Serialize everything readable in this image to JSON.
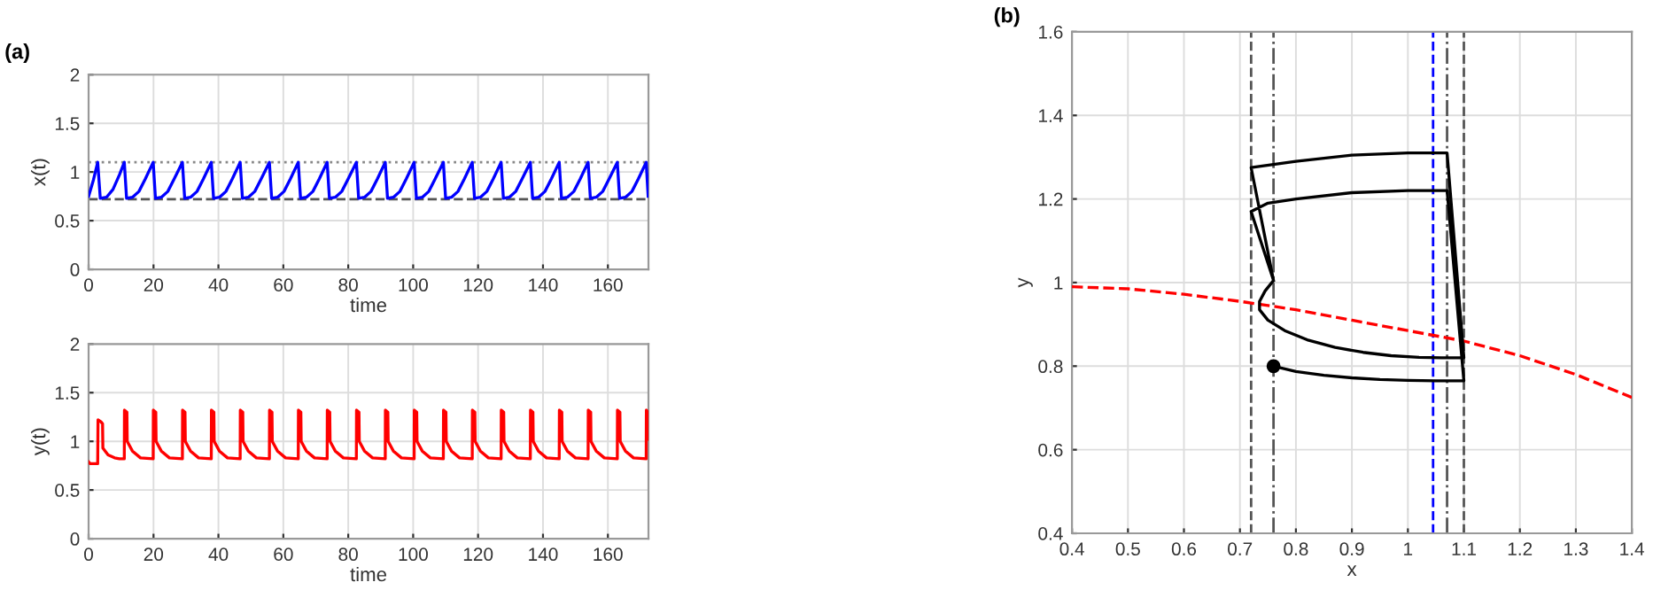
{
  "chart_data": [
    {
      "type": "line",
      "title": "(a)",
      "xlabel": "time",
      "ylabel": "x(t)",
      "xlim": [
        0,
        172.5
      ],
      "ylim": [
        0,
        2
      ],
      "xticks": [
        0,
        20,
        40,
        60,
        80,
        100,
        120,
        140,
        160
      ],
      "yticks": [
        0,
        0.5,
        1,
        1.5,
        2
      ],
      "grid": true,
      "ref_lines": [
        {
          "axis": "y",
          "value": 0.72,
          "color": "#555555",
          "line_style": "dashed"
        },
        {
          "axis": "y",
          "value": 1.1,
          "color": "#888888",
          "line_style": "dotted"
        }
      ],
      "series": [
        {
          "color": "#0000ff",
          "x": [
            0,
            1.5,
            2.8,
            3.6,
            5.5,
            7.5,
            9.5,
            11.0,
            11.7,
            13.5,
            15.5,
            17.5,
            19.9,
            20.6,
            22.4,
            24.4,
            26.4,
            28.9,
            29.6,
            31.4,
            33.4,
            35.4,
            37.8,
            38.5,
            40.3,
            42.3,
            44.3,
            46.7,
            47.4,
            49.2,
            51.2,
            53.2,
            55.7,
            56.4,
            58.2,
            60.2,
            62.2,
            64.6,
            65.3,
            67.1,
            69.1,
            71.1,
            73.5,
            74.2,
            76.0,
            78.0,
            80.0,
            82.5,
            83.2,
            85.0,
            87.0,
            89.0,
            91.4,
            92.1,
            93.9,
            95.9,
            97.9,
            100.3,
            101.0,
            102.8,
            104.8,
            106.8,
            109.3,
            110.0,
            111.8,
            113.8,
            115.8,
            118.2,
            118.9,
            120.7,
            122.7,
            124.7,
            127.1,
            127.8,
            129.6,
            131.6,
            133.6,
            136.1,
            136.8,
            138.6,
            140.6,
            142.6,
            145.0,
            145.7,
            147.5,
            149.5,
            151.5,
            153.9,
            154.6,
            156.4,
            158.4,
            160.4,
            162.9,
            163.6,
            165.4,
            167.4,
            169.4,
            171.8,
            172.4
          ],
          "values": [
            0.75,
            0.92,
            1.1,
            0.73,
            0.74,
            0.82,
            0.97,
            1.1,
            0.73,
            0.74,
            0.8,
            0.93,
            1.1,
            0.73,
            0.74,
            0.8,
            0.93,
            1.1,
            0.73,
            0.74,
            0.8,
            0.93,
            1.1,
            0.73,
            0.74,
            0.8,
            0.93,
            1.1,
            0.73,
            0.74,
            0.8,
            0.93,
            1.1,
            0.73,
            0.74,
            0.8,
            0.93,
            1.1,
            0.73,
            0.74,
            0.8,
            0.93,
            1.1,
            0.73,
            0.74,
            0.8,
            0.93,
            1.1,
            0.73,
            0.74,
            0.8,
            0.93,
            1.1,
            0.73,
            0.74,
            0.8,
            0.93,
            1.1,
            0.73,
            0.74,
            0.8,
            0.93,
            1.1,
            0.73,
            0.74,
            0.8,
            0.93,
            1.1,
            0.73,
            0.74,
            0.8,
            0.93,
            1.1,
            0.73,
            0.74,
            0.8,
            0.93,
            1.1,
            0.73,
            0.74,
            0.8,
            0.93,
            1.1,
            0.73,
            0.74,
            0.8,
            0.93,
            1.1,
            0.73,
            0.74,
            0.8,
            0.93,
            1.1,
            0.73,
            0.74,
            0.8,
            0.93,
            1.1,
            0.75
          ]
        }
      ]
    },
    {
      "type": "line",
      "xlabel": "time",
      "ylabel": "y(t)",
      "xlim": [
        0,
        172.5
      ],
      "ylim": [
        0,
        2
      ],
      "xticks": [
        0,
        20,
        40,
        60,
        80,
        100,
        120,
        140,
        160
      ],
      "yticks": [
        0,
        0.5,
        1,
        1.5,
        2
      ],
      "grid": true,
      "series": [
        {
          "color": "#ff0000",
          "x": [
            0,
            0.5,
            2.8,
            2.9,
            3.8,
            4.3,
            4.4,
            6.0,
            8.0,
            9.5,
            11.0,
            11.05,
            11.8,
            11.9,
            13.5,
            16.0,
            19.9,
            19.95,
            20.7,
            20.8,
            22.4,
            24.9,
            28.9,
            28.95,
            29.7,
            29.8,
            31.4,
            33.9,
            37.8,
            37.85,
            38.6,
            38.7,
            40.3,
            42.8,
            46.7,
            46.75,
            47.5,
            47.6,
            49.2,
            51.7,
            55.7,
            55.75,
            56.5,
            56.6,
            58.2,
            60.7,
            64.6,
            64.65,
            65.4,
            65.5,
            67.1,
            69.6,
            73.5,
            73.55,
            74.3,
            74.4,
            76.0,
            78.5,
            82.5,
            82.55,
            83.3,
            83.4,
            85.0,
            87.5,
            91.4,
            91.45,
            92.2,
            92.3,
            93.9,
            96.4,
            100.3,
            100.35,
            101.1,
            101.2,
            102.8,
            105.3,
            109.3,
            109.35,
            110.1,
            110.2,
            111.8,
            114.3,
            118.2,
            118.25,
            119.0,
            119.1,
            120.7,
            123.2,
            127.1,
            127.15,
            127.9,
            128.0,
            129.6,
            132.1,
            136.1,
            136.15,
            136.9,
            137.0,
            138.6,
            141.1,
            145.0,
            145.05,
            145.8,
            145.9,
            147.5,
            150.0,
            153.9,
            153.95,
            154.7,
            154.8,
            156.4,
            158.9,
            162.9,
            162.95,
            163.7,
            163.8,
            165.4,
            167.9,
            171.8,
            171.85,
            172.3,
            172.4
          ],
          "values": [
            0.79,
            0.77,
            0.77,
            1.22,
            1.2,
            1.18,
            0.93,
            0.86,
            0.83,
            0.82,
            0.82,
            1.32,
            1.3,
            1.0,
            0.9,
            0.83,
            0.82,
            1.32,
            1.3,
            1.0,
            0.9,
            0.83,
            0.82,
            1.32,
            1.3,
            1.0,
            0.9,
            0.83,
            0.82,
            1.32,
            1.3,
            1.0,
            0.9,
            0.83,
            0.82,
            1.32,
            1.3,
            1.0,
            0.9,
            0.83,
            0.82,
            1.32,
            1.3,
            1.0,
            0.9,
            0.83,
            0.82,
            1.32,
            1.3,
            1.0,
            0.9,
            0.83,
            0.82,
            1.32,
            1.3,
            1.0,
            0.9,
            0.83,
            0.82,
            1.32,
            1.3,
            1.0,
            0.9,
            0.83,
            0.82,
            1.32,
            1.3,
            1.0,
            0.9,
            0.83,
            0.82,
            1.32,
            1.3,
            1.0,
            0.9,
            0.83,
            0.82,
            1.32,
            1.3,
            1.0,
            0.9,
            0.83,
            0.82,
            1.32,
            1.3,
            1.0,
            0.9,
            0.83,
            0.82,
            1.32,
            1.3,
            1.0,
            0.9,
            0.83,
            0.82,
            1.32,
            1.3,
            1.0,
            0.9,
            0.83,
            0.82,
            1.32,
            1.3,
            1.0,
            0.9,
            0.83,
            0.82,
            1.32,
            1.3,
            1.0,
            0.9,
            0.83,
            0.82,
            1.32,
            1.3,
            1.0,
            0.9,
            0.83,
            0.82,
            1.32,
            1.3,
            1.02
          ]
        }
      ]
    },
    {
      "type": "line",
      "title": "(b)",
      "xlabel": "x",
      "ylabel": "y",
      "xlim": [
        0.4,
        1.4
      ],
      "ylim": [
        0.4,
        1.6
      ],
      "xticks": [
        0.4,
        0.5,
        0.6,
        0.7,
        0.8,
        0.9,
        1,
        1.1,
        1.2,
        1.3,
        1.4
      ],
      "yticks": [
        0.4,
        0.6,
        0.8,
        1,
        1.2,
        1.4,
        1.6
      ],
      "grid": true,
      "ref_lines": [
        {
          "axis": "x",
          "value": 0.72,
          "color": "#555555",
          "line_style": "dashed"
        },
        {
          "axis": "x",
          "value": 0.76,
          "color": "#555555",
          "line_style": "dashdot"
        },
        {
          "axis": "x",
          "value": 1.045,
          "color": "#0000ff",
          "line_style": "dashed"
        },
        {
          "axis": "x",
          "value": 1.07,
          "color": "#555555",
          "line_style": "dashdot"
        },
        {
          "axis": "x",
          "value": 1.1,
          "color": "#555555",
          "line_style": "dashed"
        }
      ],
      "series": [
        {
          "color": "#ff0000",
          "line_style": "dashed",
          "x": [
            0.4,
            0.5,
            0.6,
            0.7,
            0.8,
            0.9,
            1.0,
            1.1,
            1.2,
            1.3,
            1.4
          ],
          "values": [
            0.99,
            0.985,
            0.972,
            0.955,
            0.935,
            0.91,
            0.885,
            0.86,
            0.825,
            0.78,
            0.725
          ]
        },
        {
          "color": "#000000",
          "x": [
            0.76,
            0.8,
            0.85,
            0.9,
            0.95,
            1.0,
            1.05,
            1.1,
            1.07,
            1.0,
            0.9,
            0.8,
            0.75,
            0.72,
            0.76,
            0.745,
            0.735,
            0.735,
            0.75,
            0.78,
            0.82,
            0.87,
            0.92,
            0.97,
            1.02,
            1.06,
            1.1,
            1.07,
            1.0,
            0.9,
            0.8,
            0.72,
            0.76
          ],
          "values": [
            0.8,
            0.787,
            0.778,
            0.772,
            0.768,
            0.766,
            0.765,
            0.765,
            1.22,
            1.22,
            1.215,
            1.2,
            1.19,
            1.17,
            1.005,
            0.98,
            0.955,
            0.935,
            0.91,
            0.885,
            0.863,
            0.845,
            0.833,
            0.825,
            0.821,
            0.82,
            0.82,
            1.31,
            1.31,
            1.305,
            1.29,
            1.275,
            1.005
          ]
        },
        {
          "type": "scatter",
          "marker": "circle",
          "color": "#000000",
          "x": [
            0.76
          ],
          "values": [
            0.8
          ]
        }
      ]
    }
  ]
}
